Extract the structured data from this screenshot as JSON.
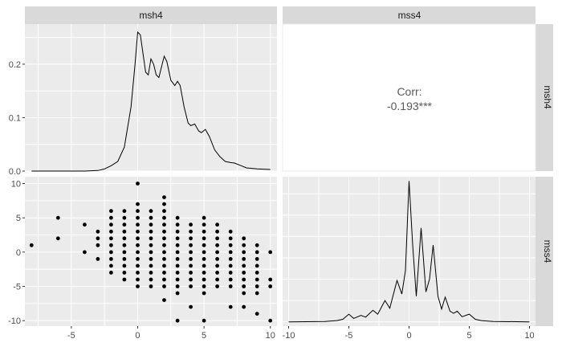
{
  "chart_data": {
    "type": "scatter",
    "variables": [
      "msh4",
      "mss4"
    ],
    "panels": {
      "top_left": {
        "kind": "density",
        "variable": "msh4",
        "xlim": [
          -8.5,
          10.5
        ],
        "ylim": [
          0,
          0.275
        ],
        "y_ticks": [
          0.0,
          0.1,
          0.2
        ],
        "y_tick_labels": [
          "0.0",
          "0.1",
          "0.2"
        ],
        "curve": [
          [
            -8,
            0
          ],
          [
            -4,
            0
          ],
          [
            -3,
            0.001
          ],
          [
            -2.5,
            0.004
          ],
          [
            -2,
            0.01
          ],
          [
            -1.5,
            0.018
          ],
          [
            -1,
            0.045
          ],
          [
            -0.5,
            0.12
          ],
          [
            -0.2,
            0.2
          ],
          [
            0,
            0.26
          ],
          [
            0.2,
            0.255
          ],
          [
            0.4,
            0.22
          ],
          [
            0.6,
            0.185
          ],
          [
            0.8,
            0.18
          ],
          [
            1,
            0.21
          ],
          [
            1.2,
            0.2
          ],
          [
            1.4,
            0.18
          ],
          [
            1.6,
            0.175
          ],
          [
            1.8,
            0.195
          ],
          [
            2,
            0.215
          ],
          [
            2.2,
            0.205
          ],
          [
            2.5,
            0.17
          ],
          [
            2.8,
            0.16
          ],
          [
            3,
            0.168
          ],
          [
            3.2,
            0.16
          ],
          [
            3.5,
            0.12
          ],
          [
            3.8,
            0.09
          ],
          [
            4,
            0.085
          ],
          [
            4.3,
            0.088
          ],
          [
            4.6,
            0.075
          ],
          [
            4.8,
            0.072
          ],
          [
            5.1,
            0.078
          ],
          [
            5.4,
            0.065
          ],
          [
            5.8,
            0.04
          ],
          [
            6.2,
            0.027
          ],
          [
            6.6,
            0.018
          ],
          [
            7,
            0.016
          ],
          [
            7.3,
            0.015
          ],
          [
            7.8,
            0.01
          ],
          [
            8.2,
            0.006
          ],
          [
            9,
            0.004
          ],
          [
            10,
            0.003
          ]
        ]
      },
      "top_right": {
        "kind": "correlation",
        "label": "Corr:",
        "value": "-0.193***"
      },
      "bottom_left": {
        "kind": "scatter",
        "x_variable": "msh4",
        "y_variable": "mss4",
        "xlim": [
          -8.5,
          10.5
        ],
        "ylim": [
          -10.8,
          11
        ],
        "y_ticks": [
          10,
          5,
          0,
          -5,
          -10
        ],
        "y_tick_labels": [
          "10",
          "5",
          "0",
          "-5",
          "-10"
        ],
        "x_ticks": [
          -5,
          0,
          5,
          10
        ],
        "x_tick_labels": [
          "-5",
          "0",
          "5",
          "10"
        ],
        "points": [
          [
            -8,
            1
          ],
          [
            -6,
            5
          ],
          [
            -6,
            2
          ],
          [
            -4,
            4
          ],
          [
            -4,
            0
          ],
          [
            -3,
            3
          ],
          [
            -3,
            2
          ],
          [
            -3,
            1
          ],
          [
            -3,
            -1
          ],
          [
            -2,
            6
          ],
          [
            -2,
            5
          ],
          [
            -2,
            4
          ],
          [
            -2,
            3
          ],
          [
            -2,
            2
          ],
          [
            -2,
            1
          ],
          [
            -2,
            0
          ],
          [
            -2,
            -1
          ],
          [
            -2,
            -2
          ],
          [
            -2,
            -3
          ],
          [
            -1,
            6
          ],
          [
            -1,
            5
          ],
          [
            -1,
            4
          ],
          [
            -1,
            3
          ],
          [
            -1,
            2
          ],
          [
            -1,
            1
          ],
          [
            -1,
            0
          ],
          [
            -1,
            -1
          ],
          [
            -1,
            -2
          ],
          [
            -1,
            -3
          ],
          [
            -1,
            -4
          ],
          [
            0,
            10
          ],
          [
            0,
            7
          ],
          [
            0,
            6
          ],
          [
            0,
            5
          ],
          [
            0,
            4
          ],
          [
            0,
            3
          ],
          [
            0,
            2
          ],
          [
            0,
            1
          ],
          [
            0,
            0
          ],
          [
            0,
            -1
          ],
          [
            0,
            -2
          ],
          [
            0,
            -3
          ],
          [
            0,
            -4
          ],
          [
            0,
            -5
          ],
          [
            1,
            6
          ],
          [
            1,
            5
          ],
          [
            1,
            4
          ],
          [
            1,
            3
          ],
          [
            1,
            2
          ],
          [
            1,
            1
          ],
          [
            1,
            0
          ],
          [
            1,
            -1
          ],
          [
            1,
            -2
          ],
          [
            1,
            -3
          ],
          [
            1,
            -4
          ],
          [
            1,
            -5
          ],
          [
            2,
            8
          ],
          [
            2,
            7
          ],
          [
            2,
            6
          ],
          [
            2,
            5
          ],
          [
            2,
            4
          ],
          [
            2,
            3
          ],
          [
            2,
            2
          ],
          [
            2,
            1
          ],
          [
            2,
            0
          ],
          [
            2,
            -1
          ],
          [
            2,
            -2
          ],
          [
            2,
            -3
          ],
          [
            2,
            -4
          ],
          [
            2,
            -5
          ],
          [
            2,
            -7
          ],
          [
            3,
            5
          ],
          [
            3,
            4
          ],
          [
            3,
            3
          ],
          [
            3,
            2
          ],
          [
            3,
            1
          ],
          [
            3,
            0
          ],
          [
            3,
            -1
          ],
          [
            3,
            -2
          ],
          [
            3,
            -3
          ],
          [
            3,
            -4
          ],
          [
            3,
            -5
          ],
          [
            3,
            -6
          ],
          [
            3,
            -10
          ],
          [
            4,
            4
          ],
          [
            4,
            3
          ],
          [
            4,
            2
          ],
          [
            4,
            1
          ],
          [
            4,
            0
          ],
          [
            4,
            -1
          ],
          [
            4,
            -2
          ],
          [
            4,
            -3
          ],
          [
            4,
            -4
          ],
          [
            4,
            -5
          ],
          [
            4,
            -8
          ],
          [
            5,
            5
          ],
          [
            5,
            4
          ],
          [
            5,
            3
          ],
          [
            5,
            2
          ],
          [
            5,
            1
          ],
          [
            5,
            0
          ],
          [
            5,
            -1
          ],
          [
            5,
            -2
          ],
          [
            5,
            -3
          ],
          [
            5,
            -4
          ],
          [
            5,
            -5
          ],
          [
            5,
            -6
          ],
          [
            5,
            -10
          ],
          [
            6,
            4
          ],
          [
            6,
            3
          ],
          [
            6,
            2
          ],
          [
            6,
            1
          ],
          [
            6,
            0
          ],
          [
            6,
            -1
          ],
          [
            6,
            -2
          ],
          [
            6,
            -3
          ],
          [
            6,
            -4
          ],
          [
            6,
            -5
          ],
          [
            7,
            3
          ],
          [
            7,
            2
          ],
          [
            7,
            1
          ],
          [
            7,
            0
          ],
          [
            7,
            -1
          ],
          [
            7,
            -2
          ],
          [
            7,
            -3
          ],
          [
            7,
            -4
          ],
          [
            7,
            -5
          ],
          [
            7,
            -8
          ],
          [
            8,
            2
          ],
          [
            8,
            1
          ],
          [
            8,
            0
          ],
          [
            8,
            -1
          ],
          [
            8,
            -2
          ],
          [
            8,
            -3
          ],
          [
            8,
            -4
          ],
          [
            8,
            -5
          ],
          [
            8,
            -6
          ],
          [
            8,
            -8
          ],
          [
            9,
            1
          ],
          [
            9,
            0
          ],
          [
            9,
            -1
          ],
          [
            9,
            -2
          ],
          [
            9,
            -3
          ],
          [
            9,
            -4
          ],
          [
            9,
            -5
          ],
          [
            9,
            -6
          ],
          [
            9,
            -9
          ],
          [
            10,
            0
          ],
          [
            10,
            -4
          ],
          [
            10,
            -5
          ],
          [
            10,
            -10
          ]
        ]
      },
      "bottom_right": {
        "kind": "density",
        "variable": "mss4",
        "xlim": [
          -10.5,
          10.5
        ],
        "ylim": [
          -0.01,
          0.34
        ],
        "x_ticks": [
          -10,
          -5,
          0,
          5,
          10
        ],
        "x_tick_labels": [
          "-10",
          "-5",
          "0",
          "5",
          "10"
        ],
        "curve": [
          [
            -10,
            0
          ],
          [
            -7,
            0.001
          ],
          [
            -6,
            0.003
          ],
          [
            -5.5,
            0.006
          ],
          [
            -5,
            0.018
          ],
          [
            -4.6,
            0.008
          ],
          [
            -4,
            0.015
          ],
          [
            -3.6,
            0.011
          ],
          [
            -3,
            0.027
          ],
          [
            -2.6,
            0.018
          ],
          [
            -2,
            0.05
          ],
          [
            -1.6,
            0.032
          ],
          [
            -1,
            0.097
          ],
          [
            -0.6,
            0.065
          ],
          [
            -0.3,
            0.12
          ],
          [
            0,
            0.33
          ],
          [
            0.3,
            0.18
          ],
          [
            0.6,
            0.06
          ],
          [
            1,
            0.22
          ],
          [
            1.4,
            0.07
          ],
          [
            1.7,
            0.1
          ],
          [
            2,
            0.18
          ],
          [
            2.4,
            0.06
          ],
          [
            2.7,
            0.03
          ],
          [
            3,
            0.058
          ],
          [
            3.4,
            0.025
          ],
          [
            3.7,
            0.02
          ],
          [
            4,
            0.025
          ],
          [
            4.4,
            0.012
          ],
          [
            5,
            0.018
          ],
          [
            5.5,
            0.006
          ],
          [
            6,
            0.003
          ],
          [
            7,
            0.001
          ],
          [
            10,
            0
          ]
        ]
      }
    },
    "strip_labels": {
      "top": [
        "msh4",
        "mss4"
      ],
      "right": [
        "msh4",
        "mss4"
      ]
    }
  },
  "colors": {
    "panel_bg": "#ebebeb",
    "grid": "#ffffff",
    "strip_bg": "#d9d9d9",
    "ink": "#000000",
    "corr_text": "#595959"
  }
}
